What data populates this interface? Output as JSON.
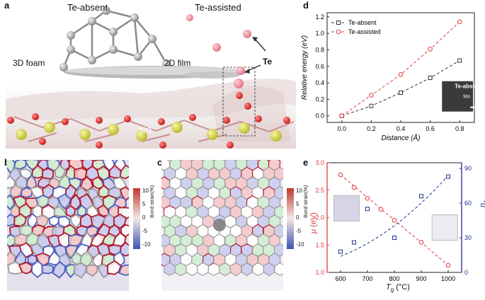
{
  "figure": {
    "panels": {
      "a": {
        "letter": "a",
        "label_te_absent": "Te-absent",
        "label_te_assisted": "Te-assisted",
        "label_3d_foam": "3D foam",
        "label_2d_film": "2D film",
        "label_te": "Te",
        "label_sio": "SiO"
      },
      "b": {
        "letter": "b",
        "colorbar_title": "Bond strain(%)",
        "colorbar_ticks": [
          "10",
          "5",
          "0",
          "-5",
          "-10"
        ]
      },
      "c": {
        "letter": "c",
        "colorbar_title": "Bond strain(%)",
        "colorbar_ticks": [
          "10",
          "5",
          "0",
          "-5",
          "-10"
        ]
      },
      "d": {
        "letter": "d",
        "inset_label": "Te-absent",
        "inset_sublabel": "Mo"
      },
      "e": {
        "letter": "e",
        "ylabel_left_sym": "μ",
        "ylabel_left_unit": " (eV)",
        "ylabel_right_sym": "n",
        "ylabel_right_sub": "c",
        "xlabel_sym": "T",
        "xlabel_sub": "g",
        "xlabel_unit": " (°C)"
      }
    },
    "colors": {
      "red": "#e0393b",
      "black": "#333333",
      "navy": "#1f2f8a",
      "te_pink": "#f08a94",
      "mo_gray": "#9a9a9a"
    }
  },
  "chart_data": [
    {
      "panel": "d",
      "type": "line",
      "xlabel": "Distance (Å)",
      "ylabel": "Relative energy (eV)",
      "xlim": [
        -0.1,
        0.9
      ],
      "ylim": [
        -0.08,
        1.25
      ],
      "xticks": [
        "0.0",
        "0.2",
        "0.4",
        "0.6",
        "0.8"
      ],
      "yticks": [
        "0.0",
        "0.2",
        "0.4",
        "0.6",
        "0.8",
        "1.0",
        "1.2"
      ],
      "legend_position": "top-left",
      "series": [
        {
          "name": "Te-absent",
          "color": "#333333",
          "marker": "square",
          "x": [
            0.0,
            0.2,
            0.4,
            0.6,
            0.8
          ],
          "y": [
            0.0,
            0.12,
            0.28,
            0.46,
            0.67
          ]
        },
        {
          "name": "Te-assisted",
          "color": "#e0393b",
          "marker": "circle",
          "x": [
            0.0,
            0.2,
            0.4,
            0.6,
            0.8
          ],
          "y": [
            0.0,
            0.25,
            0.5,
            0.81,
            1.14
          ]
        }
      ]
    },
    {
      "panel": "e",
      "type": "scatter",
      "xlabel": "Tg (°C)",
      "ylabel_left": "μ (eV)",
      "ylabel_right": "nc",
      "xlim": [
        550,
        1050
      ],
      "ylim_left": [
        1.0,
        3.0
      ],
      "ylim_right": [
        0,
        95
      ],
      "xticks": [
        "600",
        "700",
        "800",
        "900",
        "1000"
      ],
      "yticks_left": [
        "1.0",
        "1.5",
        "2.0",
        "2.5",
        "3.0"
      ],
      "yticks_right": [
        "0",
        "30",
        "60",
        "90"
      ],
      "series": [
        {
          "name": "μ",
          "axis": "left",
          "color": "#e0393b",
          "marker": "circle",
          "x": [
            600,
            650,
            700,
            750,
            800,
            900,
            1000
          ],
          "y": [
            2.78,
            2.55,
            2.35,
            2.15,
            1.95,
            1.55,
            1.13
          ]
        },
        {
          "name": "nc",
          "axis": "right",
          "color": "#1f2f8a",
          "marker": "square",
          "x": [
            600,
            650,
            700,
            800,
            900,
            1000
          ],
          "y": [
            18,
            26,
            55,
            30,
            66,
            83
          ]
        }
      ]
    }
  ]
}
